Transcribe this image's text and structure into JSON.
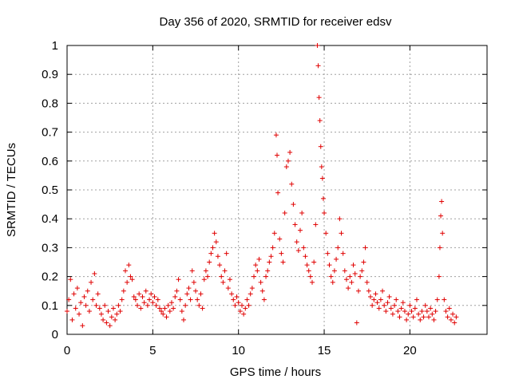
{
  "chart_data": {
    "type": "scatter",
    "title": "Day 356 of 2020, SRMTID for receiver edsv",
    "xlabel": "GPS time / hours",
    "ylabel": "SRMTID / TECUs",
    "xlim": [
      0,
      24.5
    ],
    "ylim": [
      0,
      1
    ],
    "xticks": [
      0,
      5,
      10,
      15,
      20
    ],
    "xtick_labels": [
      "0",
      "5",
      "10",
      "15",
      "20"
    ],
    "yticks": [
      0,
      0.1,
      0.2,
      0.3,
      0.4,
      0.5,
      0.6,
      0.7,
      0.8,
      0.9,
      1
    ],
    "ytick_labels": [
      "0",
      "0.1",
      "0.2",
      "0.3",
      "0.4",
      "0.5",
      "0.6",
      "0.7",
      "0.8",
      "0.9",
      "1"
    ],
    "grid": true,
    "marker": "+",
    "series": [
      {
        "name": "edsv",
        "color": "#e00000",
        "points": [
          [
            0.0,
            0.08
          ],
          [
            0.1,
            0.12
          ],
          [
            0.2,
            0.19
          ],
          [
            0.3,
            0.05
          ],
          [
            0.4,
            0.14
          ],
          [
            0.5,
            0.09
          ],
          [
            0.6,
            0.16
          ],
          [
            0.7,
            0.07
          ],
          [
            0.8,
            0.11
          ],
          [
            0.9,
            0.03
          ],
          [
            1.0,
            0.13
          ],
          [
            1.1,
            0.1
          ],
          [
            1.2,
            0.15
          ],
          [
            1.3,
            0.08
          ],
          [
            1.4,
            0.18
          ],
          [
            1.5,
            0.12
          ],
          [
            1.6,
            0.21
          ],
          [
            1.7,
            0.1
          ],
          [
            1.8,
            0.14
          ],
          [
            1.9,
            0.09
          ],
          [
            2.0,
            0.07
          ],
          [
            2.1,
            0.05
          ],
          [
            2.2,
            0.1
          ],
          [
            2.3,
            0.04
          ],
          [
            2.4,
            0.08
          ],
          [
            2.5,
            0.03
          ],
          [
            2.6,
            0.06
          ],
          [
            2.7,
            0.09
          ],
          [
            2.8,
            0.05
          ],
          [
            2.9,
            0.07
          ],
          [
            3.0,
            0.1
          ],
          [
            3.1,
            0.08
          ],
          [
            3.2,
            0.12
          ],
          [
            3.3,
            0.15
          ],
          [
            3.4,
            0.22
          ],
          [
            3.5,
            0.18
          ],
          [
            3.6,
            0.24
          ],
          [
            3.7,
            0.2
          ],
          [
            3.8,
            0.19
          ],
          [
            3.9,
            0.13
          ],
          [
            4.0,
            0.12
          ],
          [
            4.1,
            0.1
          ],
          [
            4.2,
            0.14
          ],
          [
            4.3,
            0.09
          ],
          [
            4.4,
            0.13
          ],
          [
            4.5,
            0.11
          ],
          [
            4.6,
            0.15
          ],
          [
            4.7,
            0.1
          ],
          [
            4.8,
            0.12
          ],
          [
            4.9,
            0.14
          ],
          [
            5.0,
            0.11
          ],
          [
            5.1,
            0.13
          ],
          [
            5.2,
            0.1
          ],
          [
            5.3,
            0.12
          ],
          [
            5.4,
            0.09
          ],
          [
            5.5,
            0.08
          ],
          [
            5.6,
            0.07
          ],
          [
            5.7,
            0.09
          ],
          [
            5.8,
            0.06
          ],
          [
            5.9,
            0.1
          ],
          [
            6.0,
            0.08
          ],
          [
            6.1,
            0.11
          ],
          [
            6.2,
            0.09
          ],
          [
            6.3,
            0.13
          ],
          [
            6.4,
            0.15
          ],
          [
            6.5,
            0.19
          ],
          [
            6.6,
            0.12
          ],
          [
            6.7,
            0.08
          ],
          [
            6.8,
            0.05
          ],
          [
            6.9,
            0.1
          ],
          [
            7.0,
            0.14
          ],
          [
            7.1,
            0.16
          ],
          [
            7.2,
            0.12
          ],
          [
            7.3,
            0.22
          ],
          [
            7.4,
            0.18
          ],
          [
            7.5,
            0.15
          ],
          [
            7.6,
            0.12
          ],
          [
            7.7,
            0.1
          ],
          [
            7.8,
            0.14
          ],
          [
            7.9,
            0.09
          ],
          [
            8.0,
            0.19
          ],
          [
            8.1,
            0.22
          ],
          [
            8.2,
            0.2
          ],
          [
            8.3,
            0.25
          ],
          [
            8.4,
            0.28
          ],
          [
            8.5,
            0.3
          ],
          [
            8.6,
            0.35
          ],
          [
            8.7,
            0.32
          ],
          [
            8.8,
            0.27
          ],
          [
            8.9,
            0.24
          ],
          [
            9.0,
            0.2
          ],
          [
            9.1,
            0.18
          ],
          [
            9.2,
            0.22
          ],
          [
            9.3,
            0.28
          ],
          [
            9.4,
            0.16
          ],
          [
            9.5,
            0.19
          ],
          [
            9.6,
            0.14
          ],
          [
            9.7,
            0.12
          ],
          [
            9.8,
            0.1
          ],
          [
            9.9,
            0.13
          ],
          [
            10.0,
            0.11
          ],
          [
            10.1,
            0.08
          ],
          [
            10.2,
            0.1
          ],
          [
            10.3,
            0.07
          ],
          [
            10.4,
            0.09
          ],
          [
            10.5,
            0.12
          ],
          [
            10.6,
            0.1
          ],
          [
            10.7,
            0.14
          ],
          [
            10.8,
            0.16
          ],
          [
            10.9,
            0.2
          ],
          [
            11.0,
            0.24
          ],
          [
            11.1,
            0.22
          ],
          [
            11.2,
            0.26
          ],
          [
            11.3,
            0.18
          ],
          [
            11.4,
            0.15
          ],
          [
            11.5,
            0.12
          ],
          [
            11.6,
            0.2
          ],
          [
            11.7,
            0.22
          ],
          [
            11.8,
            0.25
          ],
          [
            11.9,
            0.27
          ],
          [
            12.0,
            0.3
          ],
          [
            12.1,
            0.35
          ],
          [
            12.2,
            0.69
          ],
          [
            12.25,
            0.62
          ],
          [
            12.3,
            0.49
          ],
          [
            12.4,
            0.33
          ],
          [
            12.5,
            0.28
          ],
          [
            12.6,
            0.25
          ],
          [
            12.7,
            0.42
          ],
          [
            12.8,
            0.58
          ],
          [
            12.9,
            0.6
          ],
          [
            13.0,
            0.63
          ],
          [
            13.1,
            0.52
          ],
          [
            13.2,
            0.45
          ],
          [
            13.3,
            0.38
          ],
          [
            13.4,
            0.32
          ],
          [
            13.5,
            0.29
          ],
          [
            13.6,
            0.36
          ],
          [
            13.7,
            0.42
          ],
          [
            13.8,
            0.3
          ],
          [
            13.9,
            0.27
          ],
          [
            14.0,
            0.24
          ],
          [
            14.1,
            0.22
          ],
          [
            14.2,
            0.2
          ],
          [
            14.3,
            0.18
          ],
          [
            14.4,
            0.25
          ],
          [
            14.5,
            0.38
          ],
          [
            14.6,
            1.0
          ],
          [
            14.65,
            0.93
          ],
          [
            14.7,
            0.82
          ],
          [
            14.75,
            0.74
          ],
          [
            14.8,
            0.65
          ],
          [
            14.85,
            0.58
          ],
          [
            14.9,
            0.54
          ],
          [
            14.95,
            0.47
          ],
          [
            15.0,
            0.42
          ],
          [
            15.1,
            0.35
          ],
          [
            15.2,
            0.28
          ],
          [
            15.3,
            0.24
          ],
          [
            15.4,
            0.2
          ],
          [
            15.5,
            0.18
          ],
          [
            15.6,
            0.22
          ],
          [
            15.7,
            0.26
          ],
          [
            15.8,
            0.3
          ],
          [
            15.9,
            0.4
          ],
          [
            16.0,
            0.35
          ],
          [
            16.1,
            0.28
          ],
          [
            16.2,
            0.22
          ],
          [
            16.3,
            0.19
          ],
          [
            16.4,
            0.16
          ],
          [
            16.5,
            0.2
          ],
          [
            16.6,
            0.18
          ],
          [
            16.7,
            0.24
          ],
          [
            16.8,
            0.21
          ],
          [
            16.9,
            0.04
          ],
          [
            17.0,
            0.15
          ],
          [
            17.1,
            0.2
          ],
          [
            17.2,
            0.22
          ],
          [
            17.3,
            0.25
          ],
          [
            17.4,
            0.3
          ],
          [
            17.5,
            0.18
          ],
          [
            17.6,
            0.15
          ],
          [
            17.7,
            0.13
          ],
          [
            17.8,
            0.1
          ],
          [
            17.9,
            0.12
          ],
          [
            18.0,
            0.14
          ],
          [
            18.1,
            0.11
          ],
          [
            18.2,
            0.09
          ],
          [
            18.3,
            0.12
          ],
          [
            18.4,
            0.15
          ],
          [
            18.5,
            0.1
          ],
          [
            18.6,
            0.08
          ],
          [
            18.7,
            0.11
          ],
          [
            18.8,
            0.13
          ],
          [
            18.9,
            0.09
          ],
          [
            19.0,
            0.07
          ],
          [
            19.1,
            0.1
          ],
          [
            19.2,
            0.12
          ],
          [
            19.3,
            0.08
          ],
          [
            19.4,
            0.06
          ],
          [
            19.5,
            0.09
          ],
          [
            19.6,
            0.11
          ],
          [
            19.7,
            0.08
          ],
          [
            19.8,
            0.05
          ],
          [
            19.9,
            0.07
          ],
          [
            20.0,
            0.1
          ],
          [
            20.1,
            0.08
          ],
          [
            20.2,
            0.06
          ],
          [
            20.3,
            0.09
          ],
          [
            20.4,
            0.12
          ],
          [
            20.5,
            0.07
          ],
          [
            20.6,
            0.05
          ],
          [
            20.7,
            0.08
          ],
          [
            20.8,
            0.06
          ],
          [
            20.9,
            0.1
          ],
          [
            21.0,
            0.08
          ],
          [
            21.1,
            0.06
          ],
          [
            21.2,
            0.09
          ],
          [
            21.3,
            0.07
          ],
          [
            21.4,
            0.05
          ],
          [
            21.5,
            0.08
          ],
          [
            21.6,
            0.12
          ],
          [
            21.7,
            0.2
          ],
          [
            21.75,
            0.3
          ],
          [
            21.8,
            0.41
          ],
          [
            21.85,
            0.46
          ],
          [
            21.9,
            0.35
          ],
          [
            22.0,
            0.12
          ],
          [
            22.1,
            0.08
          ],
          [
            22.2,
            0.06
          ],
          [
            22.3,
            0.09
          ],
          [
            22.4,
            0.05
          ],
          [
            22.5,
            0.07
          ],
          [
            22.6,
            0.04
          ],
          [
            22.7,
            0.06
          ]
        ]
      }
    ]
  }
}
